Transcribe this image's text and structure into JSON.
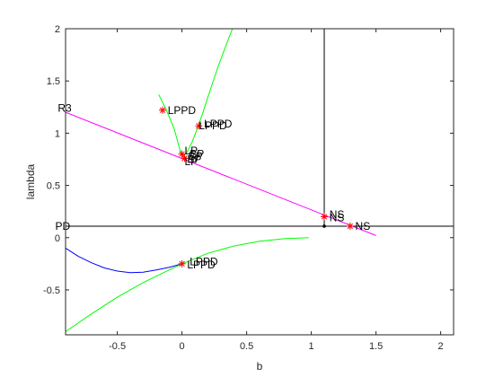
{
  "chart_data": {
    "type": "line",
    "title": "",
    "xlabel": "b",
    "ylabel": "lambda",
    "xlim": [
      -0.9,
      2.1
    ],
    "ylim": [
      -0.93,
      2.0
    ],
    "x_ticks": [
      -0.5,
      0,
      0.5,
      1,
      1.5,
      2
    ],
    "x_tick_labels": [
      "-0.5",
      "0",
      "0.5",
      "1",
      "1.5",
      "2"
    ],
    "y_ticks": [
      -0.5,
      0,
      0.5,
      1,
      1.5,
      2
    ],
    "y_tick_labels": [
      "-0.5",
      "0",
      "0.5",
      "1",
      "1.5",
      "2"
    ],
    "grid": false,
    "colors": {
      "green": "#00ff00",
      "blue": "#0000ff",
      "magenta": "#ff00ff",
      "black": "#000000",
      "red": "#ff0000"
    },
    "series": [
      {
        "color": "green",
        "x": [
          -0.18,
          -0.12,
          -0.06,
          -0.02,
          0.0,
          0.04,
          0.08,
          0.12,
          0.16,
          0.22,
          0.28,
          0.34,
          0.39
        ],
        "y": [
          1.37,
          1.22,
          1.04,
          0.86,
          0.78,
          0.82,
          0.92,
          1.05,
          1.19,
          1.42,
          1.64,
          1.84,
          2.0
        ]
      },
      {
        "color": "magenta",
        "x": [
          -0.9,
          1.5
        ],
        "y": [
          1.2,
          0.02
        ]
      },
      {
        "color": "black",
        "x": [
          -0.9,
          2.1
        ],
        "y": [
          0.11,
          0.11
        ]
      },
      {
        "color": "black",
        "x": [
          1.1,
          1.1
        ],
        "y": [
          0.11,
          2.0
        ]
      },
      {
        "color": "blue",
        "x": [
          -0.9,
          -0.8,
          -0.7,
          -0.6,
          -0.5,
          -0.4,
          -0.3,
          -0.2,
          -0.1,
          0.0
        ],
        "y": [
          -0.1,
          -0.18,
          -0.24,
          -0.29,
          -0.32,
          -0.335,
          -0.33,
          -0.31,
          -0.285,
          -0.25
        ]
      },
      {
        "color": "green",
        "x": [
          -0.9,
          -0.7,
          -0.5,
          -0.3,
          -0.1,
          0.0,
          0.2,
          0.4,
          0.6,
          0.8,
          0.95,
          0.98
        ],
        "y": [
          -0.9,
          -0.73,
          -0.57,
          -0.43,
          -0.31,
          -0.25,
          -0.15,
          -0.08,
          -0.035,
          -0.008,
          -0.002,
          0.0
        ]
      }
    ],
    "points": [
      {
        "x": -0.15,
        "y": 1.22
      },
      {
        "x": 0.13,
        "y": 1.07
      },
      {
        "x": 0.0,
        "y": 0.8
      },
      {
        "x": 0.02,
        "y": 0.76
      },
      {
        "x": 1.1,
        "y": 0.2
      },
      {
        "x": 1.3,
        "y": 0.11
      },
      {
        "x": 0.0,
        "y": -0.25
      }
    ],
    "dots": [
      {
        "x": 1.1,
        "y": 0.11
      }
    ],
    "annotations": [
      {
        "text": "LPPD",
        "x": -0.11,
        "y": 1.22
      },
      {
        "text": "LPPD",
        "x": 0.17,
        "y": 1.09
      },
      {
        "text": "LPPD",
        "x": 0.13,
        "y": 1.07
      },
      {
        "text": "LP",
        "x": 0.02,
        "y": 0.83
      },
      {
        "text": "BP",
        "x": 0.06,
        "y": 0.8
      },
      {
        "text": "BP",
        "x": 0.05,
        "y": 0.78
      },
      {
        "text": "BP",
        "x": 0.04,
        "y": 0.75
      },
      {
        "text": "LP",
        "x": 0.02,
        "y": 0.73
      },
      {
        "text": "NS",
        "x": 1.14,
        "y": 0.22
      },
      {
        "text": "NS",
        "x": 1.14,
        "y": 0.19
      },
      {
        "text": "NS",
        "x": 1.34,
        "y": 0.11
      },
      {
        "text": "LPPD",
        "x": 0.06,
        "y": -0.23
      },
      {
        "text": "LPPD",
        "x": 0.04,
        "y": -0.26
      },
      {
        "text": "R3",
        "x": -0.96,
        "y": 1.24
      },
      {
        "text": "PD",
        "x": -0.98,
        "y": 0.11
      }
    ]
  }
}
